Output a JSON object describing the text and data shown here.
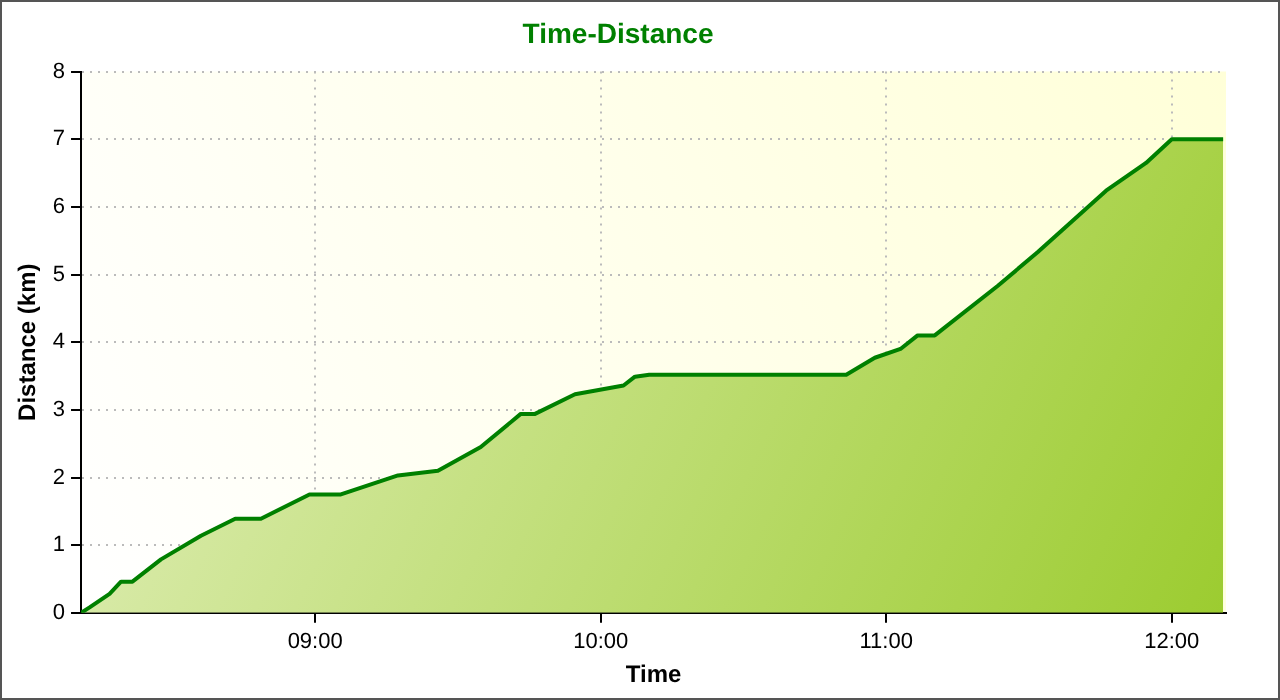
{
  "chart_data": {
    "type": "area",
    "title": "Time-Distance",
    "xlabel": "Time",
    "ylabel": "Distance (km)",
    "x": [
      8.18,
      8.21,
      8.28,
      8.32,
      8.36,
      8.46,
      8.6,
      8.72,
      8.81,
      8.98,
      9.09,
      9.29,
      9.43,
      9.58,
      9.72,
      9.77,
      9.91,
      10.08,
      10.12,
      10.17,
      10.86,
      10.96,
      11.05,
      11.11,
      11.17,
      11.39,
      11.53,
      11.77,
      11.91,
      12.0,
      12.18
    ],
    "series": [
      {
        "color": "#008000",
        "values": [
          0,
          0.08,
          0.28,
          0.46,
          0.46,
          0.79,
          1.14,
          1.39,
          1.39,
          1.75,
          1.75,
          2.03,
          2.1,
          2.45,
          2.94,
          2.94,
          3.23,
          3.36,
          3.49,
          3.52,
          3.52,
          3.77,
          3.9,
          4.1,
          4.1,
          4.83,
          5.33,
          6.24,
          6.65,
          7.0,
          7.0
        ]
      }
    ],
    "xlim": [
      8.18,
      12.19
    ],
    "xticks": [
      {
        "value": 9,
        "label": "09:00"
      },
      {
        "value": 10,
        "label": "10:00"
      },
      {
        "value": 11,
        "label": "11:00"
      },
      {
        "value": 12,
        "label": "12:00"
      }
    ],
    "ylim": [
      0,
      8
    ],
    "yticks": [
      0,
      1,
      2,
      3,
      4,
      5,
      6,
      7,
      8
    ],
    "grid": true,
    "legend": false
  }
}
